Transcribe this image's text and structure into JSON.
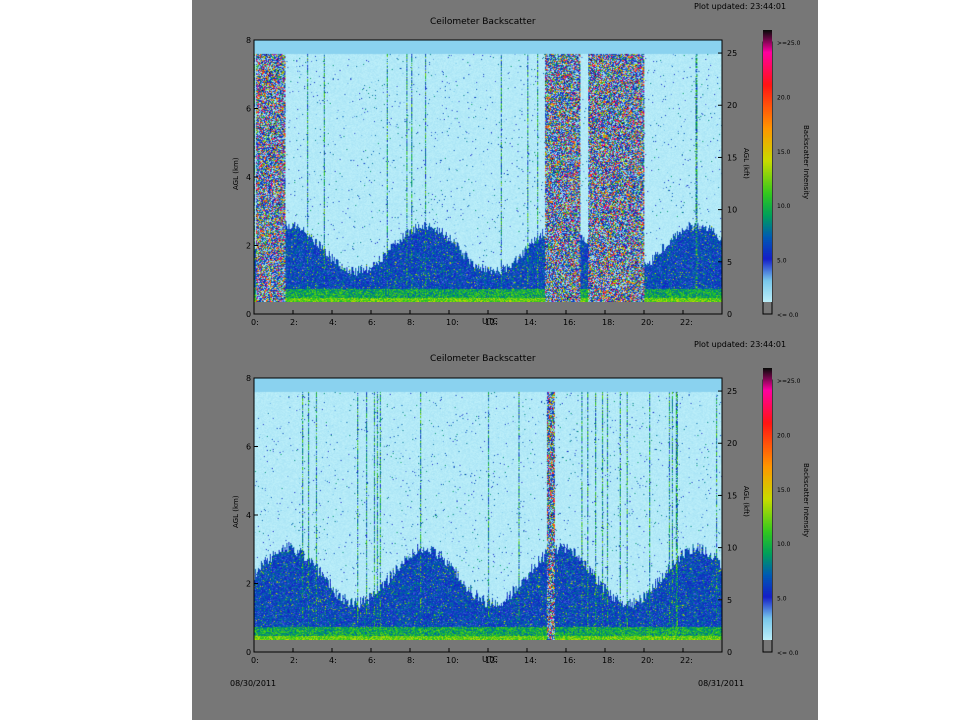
{
  "colors": {
    "panel": "#777777",
    "frame": "#000000"
  },
  "chart_data": [
    {
      "type": "heatmap",
      "title": "Ceilometer Backscatter",
      "updated": "Plot updated: 23:44:01",
      "xlabel": "UTC",
      "ylabel_left": "AGL (km)",
      "ylabel_right": "AGL (kft)",
      "colorbar_label": "Backscatter Intensity",
      "x_ticks": [
        "0:",
        "2:",
        "4:",
        "6:",
        "8:",
        "10:",
        "12:",
        "14:",
        "16:",
        "18:",
        "20:",
        "22:"
      ],
      "x_range": [
        0,
        24
      ],
      "y_ticks_km": [
        "0",
        "2",
        "4",
        "6",
        "8"
      ],
      "ylim_km": [
        0,
        8
      ],
      "y_ticks_kft": [
        "0",
        "5",
        "10",
        "15",
        "20",
        "25"
      ],
      "colorbar_ticks": [
        ">=25.0",
        "20.0",
        "15.0",
        "10.0",
        "5.0",
        "<= 0.0"
      ],
      "colorbar_range": [
        0,
        25
      ],
      "features": {
        "precip_intervals_utc": [
          [
            0.1,
            1.6
          ],
          [
            14.9,
            16.7
          ],
          [
            17.1,
            20.0
          ]
        ],
        "boundary_layer_top_km": 2.0
      }
    },
    {
      "type": "heatmap",
      "title": "Ceilometer Backscatter",
      "updated": "Plot updated: 23:44:01",
      "xlabel": "UTC",
      "ylabel_left": "AGL (km)",
      "ylabel_right": "AGL (kft)",
      "colorbar_label": "Backscatter Intensity",
      "x_ticks": [
        "0:",
        "2:",
        "4:",
        "6:",
        "8:",
        "10:",
        "12:",
        "14:",
        "16:",
        "18:",
        "20:",
        "22:"
      ],
      "x_range": [
        0,
        24
      ],
      "y_ticks_km": [
        "0",
        "2",
        "4",
        "6",
        "8"
      ],
      "ylim_km": [
        0,
        8
      ],
      "y_ticks_kft": [
        "0",
        "5",
        "10",
        "15",
        "20",
        "25"
      ],
      "colorbar_ticks": [
        ">=25.0",
        "20.0",
        "15.0",
        "10.0",
        "5.0",
        "<= 0.0"
      ],
      "colorbar_range": [
        0,
        25
      ],
      "features": {
        "precip_intervals_utc": [
          [
            15.0,
            15.4
          ]
        ],
        "boundary_layer_top_km": 2.4
      }
    }
  ],
  "footer": {
    "date_left": "08/30/2011",
    "date_right": "08/31/2011"
  }
}
